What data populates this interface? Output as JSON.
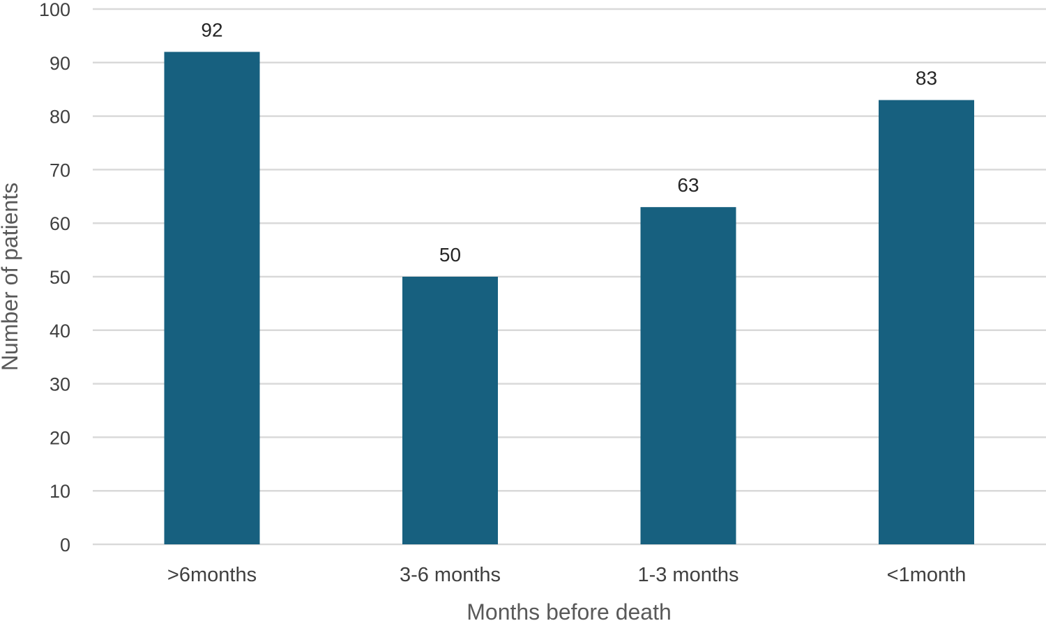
{
  "chart_data": {
    "type": "bar",
    "categories": [
      ">6months",
      "3-6 months",
      "1-3 months",
      "<1month"
    ],
    "values": [
      92,
      50,
      63,
      83
    ],
    "title": "",
    "xlabel": "Months before death",
    "ylabel": "Number of patients",
    "ylim": [
      0,
      100
    ],
    "yticks": [
      0,
      10,
      20,
      30,
      40,
      50,
      60,
      70,
      80,
      90,
      100
    ],
    "grid": true,
    "data_labels": true,
    "legend": "none",
    "bar_color": "#17607f"
  }
}
